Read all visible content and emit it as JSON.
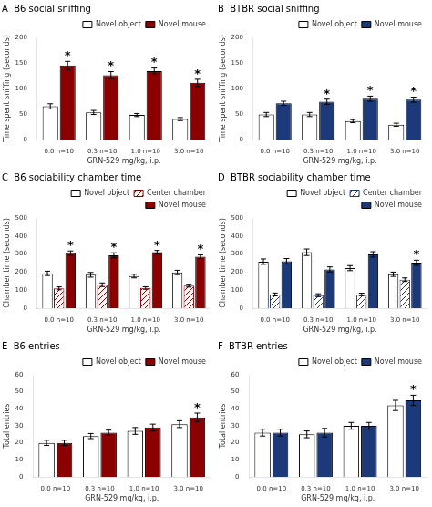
{
  "chart_data": [
    {
      "type": "bar",
      "title": "A  B6 social sniffing",
      "xlabel": "GRN-529 mg/kg, i.p.",
      "ylabel": "Time spent sniffing (seconds)",
      "categories": [
        "0.0 n=10",
        "0.3 n=10",
        "1.0 n=10",
        "3.0 n=10"
      ],
      "series": [
        {
          "name": "Novel object",
          "color": "#ffffff",
          "values": [
            65,
            53,
            48,
            40
          ],
          "errors": [
            5,
            4,
            3,
            3
          ]
        },
        {
          "name": "Novel mouse",
          "color": "#8B0000",
          "values": [
            145,
            126,
            134,
            111
          ],
          "errors": [
            8,
            7,
            6,
            7
          ]
        }
      ],
      "ylim": [
        0,
        200
      ],
      "yticks": [
        0,
        50,
        100,
        150,
        200
      ],
      "legend": "upper right",
      "grid": false,
      "annotations": [
        {
          "text": "*",
          "category": "0.0 n=10",
          "series": "Novel mouse"
        },
        {
          "text": "*",
          "category": "0.3 n=10",
          "series": "Novel mouse"
        },
        {
          "text": "*",
          "category": "1.0 n=10",
          "series": "Novel mouse"
        },
        {
          "text": "*",
          "category": "3.0 n=10",
          "series": "Novel mouse"
        }
      ]
    },
    {
      "type": "bar",
      "title": "B  BTBR social sniffing",
      "xlabel": "GRN-529 mg/kg, i.p.",
      "ylabel": "Time spent sniffing (seconds)",
      "categories": [
        "0.0 n=10",
        "0.3 n=10",
        "1.0 n=10",
        "3.0 n=10"
      ],
      "series": [
        {
          "name": "Novel object",
          "color": "#ffffff",
          "values": [
            49,
            49,
            36,
            29
          ],
          "errors": [
            4,
            4,
            3,
            3
          ]
        },
        {
          "name": "Novel mouse",
          "color": "#1c3a7a",
          "values": [
            71,
            74,
            80,
            78
          ],
          "errors": [
            4,
            5,
            5,
            5
          ]
        }
      ],
      "ylim": [
        0,
        200
      ],
      "yticks": [
        0,
        50,
        100,
        150,
        200
      ],
      "legend": "upper right",
      "grid": false,
      "annotations": [
        {
          "text": "*",
          "category": "0.3 n=10",
          "series": "Novel mouse"
        },
        {
          "text": "*",
          "category": "1.0 n=10",
          "series": "Novel mouse"
        },
        {
          "text": "*",
          "category": "3.0 n=10",
          "series": "Novel mouse"
        }
      ]
    },
    {
      "type": "bar",
      "title": "C  B6 sociability chamber time",
      "xlabel": "GRN-529 mg/kg, i.p.",
      "ylabel": "Chamber time (seconds)",
      "categories": [
        "0.0 n=10",
        "0.3 n=10",
        "1.0 n=10",
        "3.0 n=10"
      ],
      "series": [
        {
          "name": "Novel object",
          "color": "#ffffff",
          "values": [
            193,
            185,
            178,
            198
          ],
          "errors": [
            12,
            13,
            10,
            12
          ]
        },
        {
          "name": "Center chamber",
          "color": "#8B0000",
          "values": [
            110,
            130,
            112,
            125
          ],
          "errors": [
            8,
            10,
            7,
            8
          ]
        },
        {
          "name": "Novel mouse",
          "color": "#8B0000",
          "values": [
            305,
            293,
            310,
            285
          ],
          "errors": [
            12,
            14,
            10,
            10
          ]
        }
      ],
      "ylim": [
        0,
        500
      ],
      "yticks": [
        0,
        100,
        200,
        300,
        400,
        500
      ],
      "legend": "upper right",
      "grid": false,
      "annotations": [
        {
          "text": "*",
          "category": "0.0 n=10",
          "series": "Novel mouse"
        },
        {
          "text": "*",
          "category": "0.3 n=10",
          "series": "Novel mouse"
        },
        {
          "text": "*",
          "category": "1.0 n=10",
          "series": "Novel mouse"
        },
        {
          "text": "*",
          "category": "3.0 n=10",
          "series": "Novel mouse"
        }
      ]
    },
    {
      "type": "bar",
      "title": "D  BTBR sociability chamber time",
      "xlabel": "GRN-529 mg/kg, i.p.",
      "ylabel": "Chamber time (seconds)",
      "categories": [
        "0.0 n=10",
        "0.3 n=10",
        "1.0 n=10",
        "3.0 n=10"
      ],
      "series": [
        {
          "name": "Novel object",
          "color": "#ffffff",
          "values": [
            258,
            310,
            222,
            188
          ],
          "errors": [
            15,
            18,
            14,
            12
          ]
        },
        {
          "name": "Center chamber",
          "color": "#1c3a7a",
          "values": [
            76,
            72,
            76,
            158
          ],
          "errors": [
            8,
            8,
            7,
            10
          ]
        },
        {
          "name": "Novel mouse",
          "color": "#1c3a7a",
          "values": [
            260,
            215,
            298,
            252
          ],
          "errors": [
            15,
            14,
            15,
            14
          ]
        }
      ],
      "ylim": [
        0,
        500
      ],
      "yticks": [
        0,
        100,
        200,
        300,
        400,
        500
      ],
      "legend": "upper right",
      "grid": false,
      "annotations": [
        {
          "text": "*",
          "category": "3.0 n=10",
          "series": "Novel mouse"
        }
      ]
    },
    {
      "type": "bar",
      "title": "E  B6 entries",
      "xlabel": "GRN-529 mg/kg, i.p.",
      "ylabel": "Total entries",
      "categories": [
        "0.0 n=10",
        "0.3 n=10",
        "1.0 n=10",
        "3.0 n=10"
      ],
      "series": [
        {
          "name": "Novel object",
          "color": "#ffffff",
          "values": [
            20,
            24,
            27,
            31
          ],
          "errors": [
            1.5,
            1.5,
            2,
            2
          ]
        },
        {
          "name": "Novel mouse",
          "color": "#8B0000",
          "values": [
            20,
            26,
            29,
            35
          ],
          "errors": [
            1.5,
            1.5,
            2,
            2.5
          ]
        }
      ],
      "ylim": [
        0,
        60
      ],
      "yticks": [
        0,
        10,
        20,
        30,
        40,
        50,
        60
      ],
      "legend": "upper right",
      "grid": false,
      "annotations": [
        {
          "text": "*",
          "category": "3.0 n=10",
          "series": "Novel mouse"
        }
      ]
    },
    {
      "type": "bar",
      "title": "F  BTBR entries",
      "xlabel": "GRN-529 mg/kg, i.p.",
      "ylabel": "Total entries",
      "categories": [
        "0.0 n=10",
        "0.3 n=10",
        "1.0 n=10",
        "3.0 n=10"
      ],
      "series": [
        {
          "name": "Novel object",
          "color": "#ffffff",
          "values": [
            26,
            25,
            30,
            42
          ],
          "errors": [
            2,
            2,
            2,
            3
          ]
        },
        {
          "name": "Novel mouse",
          "color": "#1c3a7a",
          "values": [
            26,
            26,
            30,
            45
          ],
          "errors": [
            2,
            2.5,
            2,
            3
          ]
        }
      ],
      "ylim": [
        0,
        60
      ],
      "yticks": [
        0,
        10,
        20,
        30,
        40,
        50,
        60
      ],
      "legend": "upper right",
      "grid": false,
      "annotations": [
        {
          "text": "*",
          "category": "3.0 n=10",
          "series": "Novel mouse"
        }
      ]
    }
  ]
}
